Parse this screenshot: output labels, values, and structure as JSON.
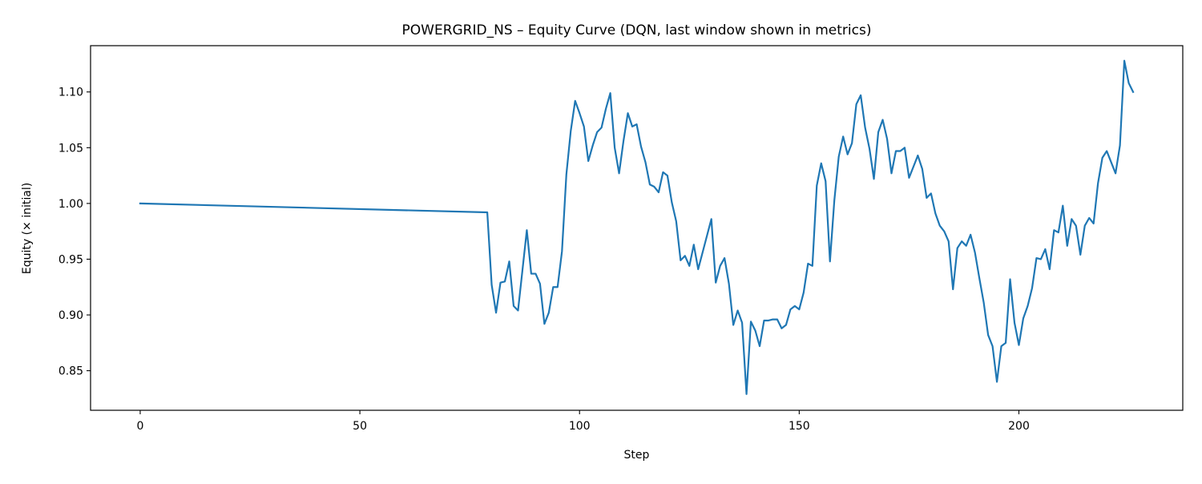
{
  "figure": {
    "title": "POWERGRID_NS – Equity Curve (DQN, last window shown in metrics)"
  },
  "chart_data": {
    "type": "line",
    "title": "POWERGRID_NS – Equity Curve (DQN, last window shown in metrics)",
    "xlabel": "Step",
    "ylabel": "Equity (× initial)",
    "xlim": [
      -11.3,
      237.3
    ],
    "ylim": [
      0.8145,
      1.1415
    ],
    "xticks": [
      0,
      50,
      100,
      150,
      200
    ],
    "xtick_labels": [
      "0",
      "50",
      "100",
      "150",
      "200"
    ],
    "yticks": [
      0.85,
      0.9,
      0.95,
      1.0,
      1.05,
      1.1
    ],
    "ytick_labels": [
      "0.85",
      "0.90",
      "0.95",
      "1.00",
      "1.05",
      "1.10"
    ],
    "grid": false,
    "legend": "none",
    "colors": {
      "line": "#1f77b4"
    },
    "series": [
      {
        "x": [
          0,
          79,
          80,
          81,
          82,
          83,
          84,
          85,
          86,
          87,
          88,
          89,
          90,
          91,
          92,
          93,
          94,
          95,
          96,
          97,
          98,
          99,
          100,
          101,
          102,
          103,
          104,
          105,
          106,
          107,
          108,
          109,
          110,
          111,
          112,
          113,
          114,
          115,
          116,
          117,
          118,
          119,
          120,
          121,
          122,
          123,
          124,
          125,
          126,
          127,
          128,
          129,
          130,
          131,
          132,
          133,
          134,
          135,
          136,
          137,
          138,
          139,
          140,
          141,
          142,
          143,
          144,
          145,
          146,
          147,
          148,
          149,
          150,
          151,
          152,
          153,
          154,
          155,
          156,
          157,
          158,
          159,
          160,
          161,
          162,
          163,
          164,
          165,
          166,
          167,
          168,
          169,
          170,
          171,
          172,
          173,
          174,
          175,
          176,
          177,
          178,
          179,
          180,
          181,
          182,
          183,
          184,
          185,
          186,
          187,
          188,
          189,
          190,
          191,
          192,
          193,
          194,
          195,
          196,
          197,
          198,
          199,
          200,
          201,
          202,
          203,
          204,
          205,
          206,
          207,
          208,
          209,
          210,
          211,
          212,
          213,
          214,
          215,
          216,
          217,
          218,
          219,
          220,
          221,
          222,
          223,
          224,
          225,
          226
        ],
        "y": [
          1.0,
          0.992,
          0.927,
          0.902,
          0.929,
          0.93,
          0.948,
          0.908,
          0.904,
          0.94,
          0.976,
          0.937,
          0.937,
          0.928,
          0.892,
          0.902,
          0.925,
          0.925,
          0.957,
          1.026,
          1.065,
          1.092,
          1.081,
          1.069,
          1.038,
          1.052,
          1.064,
          1.068,
          1.085,
          1.099,
          1.05,
          1.027,
          1.056,
          1.081,
          1.069,
          1.071,
          1.051,
          1.037,
          1.017,
          1.015,
          1.01,
          1.028,
          1.025,
          1.001,
          0.984,
          0.949,
          0.953,
          0.944,
          0.963,
          0.941,
          0.956,
          0.971,
          0.986,
          0.929,
          0.944,
          0.951,
          0.928,
          0.891,
          0.904,
          0.893,
          0.829,
          0.894,
          0.886,
          0.872,
          0.895,
          0.895,
          0.896,
          0.896,
          0.888,
          0.891,
          0.905,
          0.908,
          0.905,
          0.92,
          0.946,
          0.944,
          1.016,
          1.036,
          1.02,
          0.948,
          1.003,
          1.042,
          1.06,
          1.044,
          1.054,
          1.089,
          1.097,
          1.068,
          1.049,
          1.022,
          1.064,
          1.075,
          1.058,
          1.027,
          1.047,
          1.047,
          1.05,
          1.023,
          1.033,
          1.043,
          1.031,
          1.005,
          1.009,
          0.991,
          0.98,
          0.975,
          0.966,
          0.923,
          0.96,
          0.966,
          0.962,
          0.972,
          0.956,
          0.933,
          0.911,
          0.882,
          0.872,
          0.84,
          0.872,
          0.875,
          0.932,
          0.893,
          0.873,
          0.897,
          0.908,
          0.924,
          0.951,
          0.95,
          0.959,
          0.941,
          0.976,
          0.974,
          0.998,
          0.962,
          0.986,
          0.98,
          0.954,
          0.98,
          0.987,
          0.982,
          1.018,
          1.041,
          1.047,
          1.037,
          1.027,
          1.052,
          1.128,
          1.108,
          1.1
        ]
      }
    ]
  }
}
